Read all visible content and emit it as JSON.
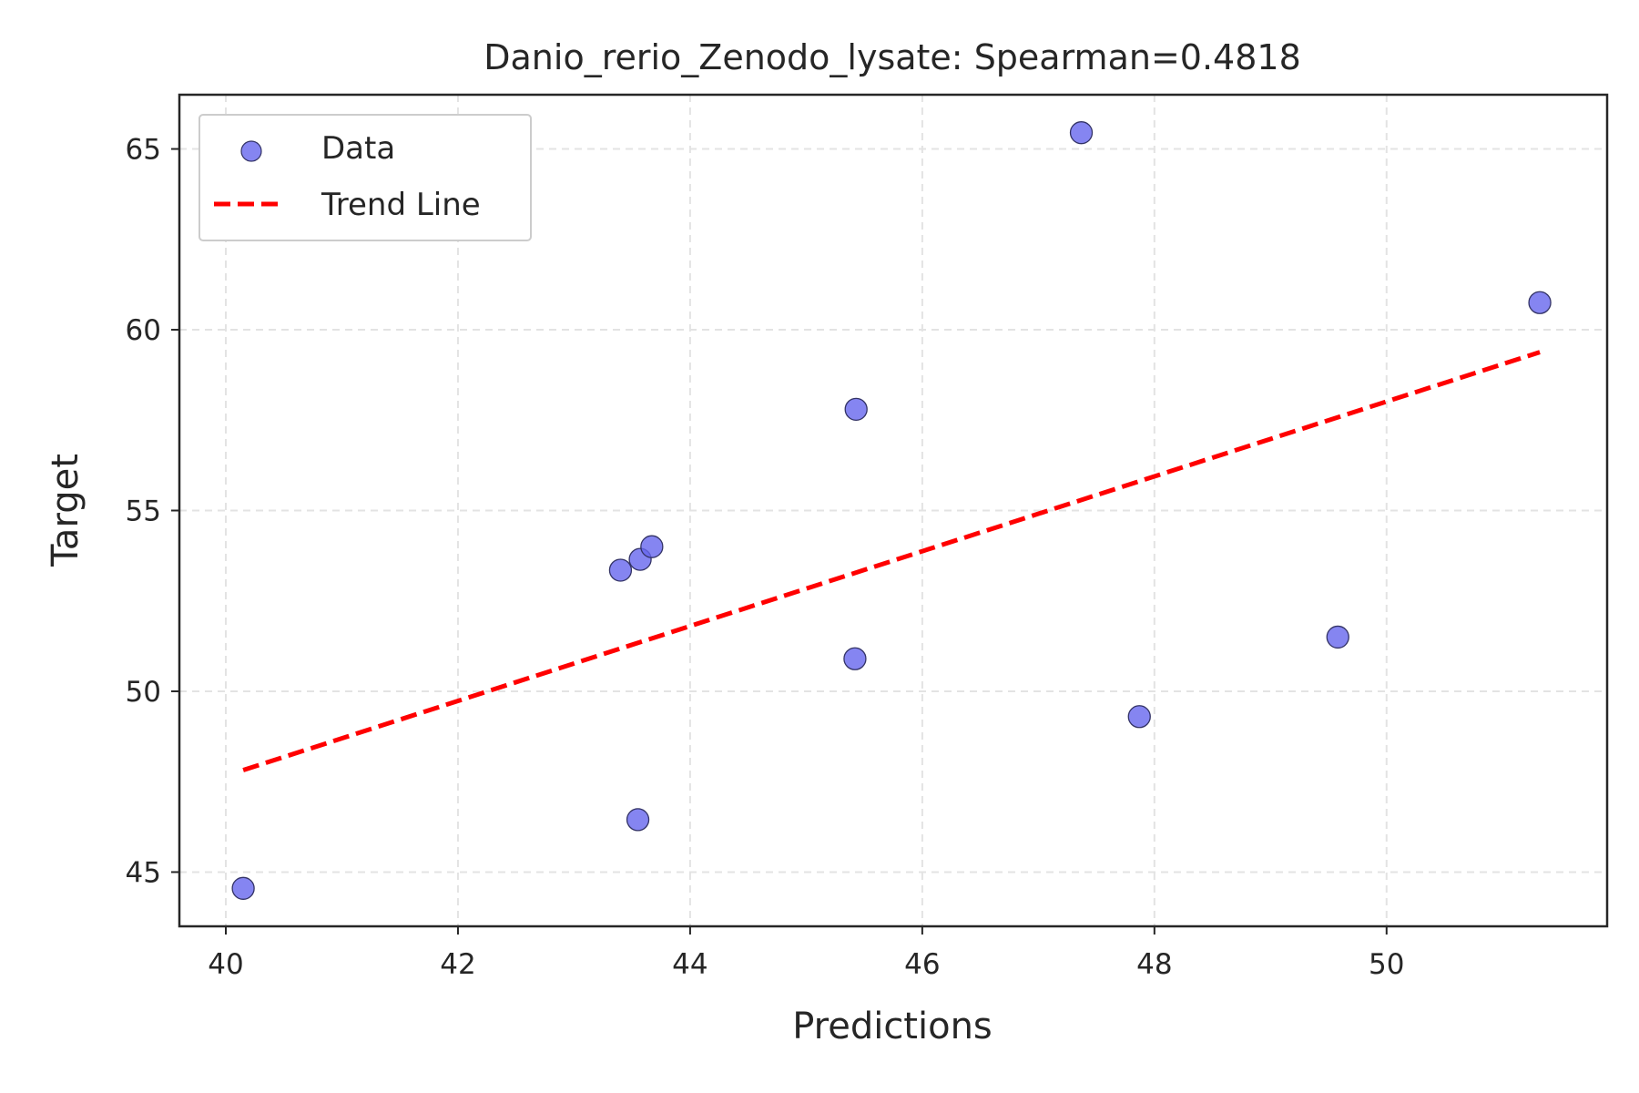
{
  "chart_data": {
    "type": "scatter",
    "title": "Danio_rerio_Zenodo_lysate: Spearman=0.4818",
    "xlabel": "Predictions",
    "ylabel": "Target",
    "xlim": [
      39.6,
      51.9
    ],
    "ylim": [
      43.5,
      66.5
    ],
    "xticks": [
      40,
      42,
      44,
      46,
      48,
      50
    ],
    "yticks": [
      45,
      50,
      55,
      60,
      65
    ],
    "grid": true,
    "legend_position": "top-left",
    "series": [
      {
        "name": "Data",
        "kind": "scatter",
        "color": "#6666ee",
        "points": [
          {
            "x": 40.15,
            "y": 44.55
          },
          {
            "x": 43.4,
            "y": 53.35
          },
          {
            "x": 43.55,
            "y": 46.45
          },
          {
            "x": 43.57,
            "y": 53.65
          },
          {
            "x": 43.67,
            "y": 54.0
          },
          {
            "x": 45.42,
            "y": 50.9
          },
          {
            "x": 45.43,
            "y": 57.8
          },
          {
            "x": 47.37,
            "y": 65.45
          },
          {
            "x": 47.87,
            "y": 49.3
          },
          {
            "x": 49.58,
            "y": 51.5
          },
          {
            "x": 51.32,
            "y": 60.75
          }
        ]
      },
      {
        "name": "Trend Line",
        "kind": "line",
        "style": "dashed",
        "color": "#ff0000",
        "points": [
          {
            "x": 40.15,
            "y": 47.82
          },
          {
            "x": 51.32,
            "y": 59.38
          }
        ]
      }
    ]
  }
}
